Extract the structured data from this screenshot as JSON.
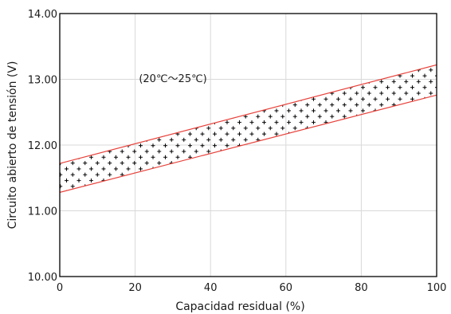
{
  "chart_data": {
    "type": "line",
    "title": "",
    "xlabel": "Capacidad residual  (%)",
    "ylabel": "Circuito abierto de tensión (V)",
    "annotation": "(20℃～25℃)",
    "xlim": [
      0,
      100
    ],
    "ylim": [
      10.0,
      14.0
    ],
    "xticks": [
      0,
      20,
      40,
      60,
      80,
      100
    ],
    "xtick_labels": [
      "0",
      "20",
      "40",
      "60",
      "80",
      "100"
    ],
    "yticks": [
      10.0,
      11.0,
      12.0,
      13.0,
      14.0
    ],
    "ytick_labels": [
      "10.00",
      "11.00",
      "12.00",
      "13.00",
      "14.00"
    ],
    "grid": true,
    "band_fill": "dotted-plus-pattern",
    "series": [
      {
        "x": [
          0,
          100
        ],
        "y": [
          11.72,
          13.22
        ]
      },
      {
        "x": [
          0,
          100
        ],
        "y": [
          11.28,
          12.76
        ]
      }
    ],
    "colors": {
      "band_lines": "#e8413a",
      "grid": "#d9d9d9",
      "axis": "#000000",
      "pattern": "#000000"
    }
  }
}
